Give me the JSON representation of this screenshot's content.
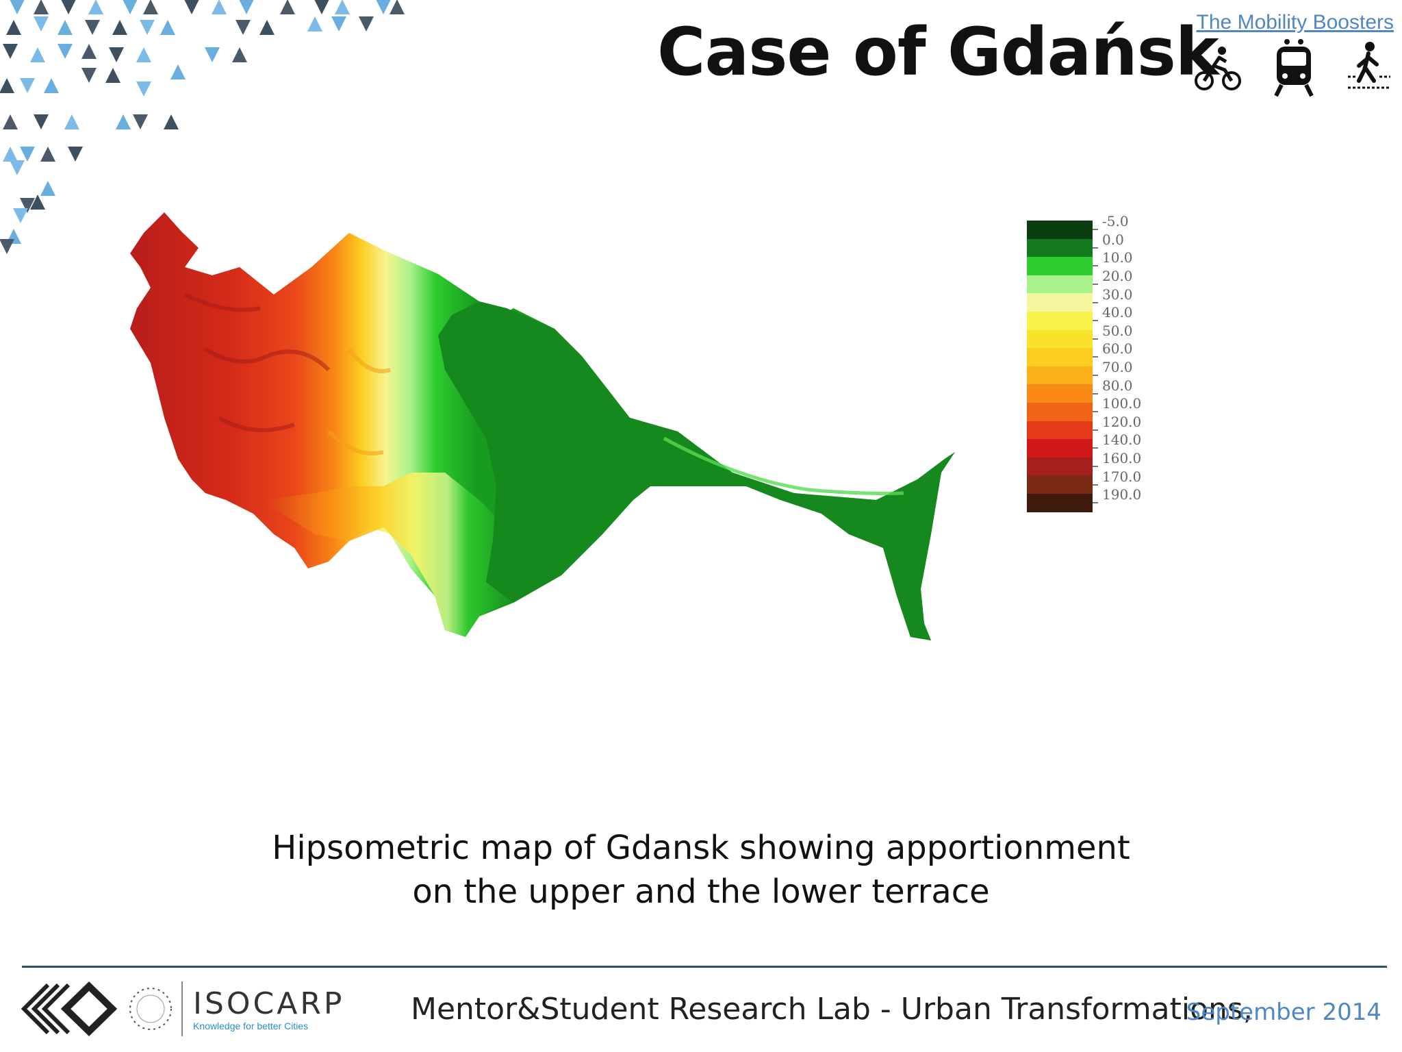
{
  "header": {
    "title": "Case of Gdańsk",
    "brand_link": "The Mobility Boosters",
    "mode_icons": [
      "bicycle-icon",
      "tram-icon",
      "pedestrian-icon"
    ]
  },
  "map": {
    "legend": {
      "values": [
        "-5.0",
        "0.0",
        "10.0",
        "20.0",
        "30.0",
        "40.0",
        "50.0",
        "60.0",
        "70.0",
        "80.0",
        "100.0",
        "120.0",
        "140.0",
        "160.0",
        "170.0",
        "190.0"
      ],
      "colors": [
        "#0b3d12",
        "#157a1f",
        "#2ecc2e",
        "#a8f28c",
        "#f4f7a0",
        "#f7f24a",
        "#f9e32a",
        "#fbcd1f",
        "#fbb21a",
        "#f98a16",
        "#f06418",
        "#e33a19",
        "#d01818",
        "#a61f1f",
        "#7a2a14",
        "#3d1a0b"
      ]
    }
  },
  "caption": {
    "line1": "Hipsometric map of Gdansk showing apportionment",
    "line2": "on the upper and the lower terrace"
  },
  "footer": {
    "logo_name": "ISOCARP",
    "logo_tagline": "Knowledge for better Cities",
    "lab_text": "Mentor&Student Research Lab - Urban Transformations,",
    "date": "September 2014"
  }
}
